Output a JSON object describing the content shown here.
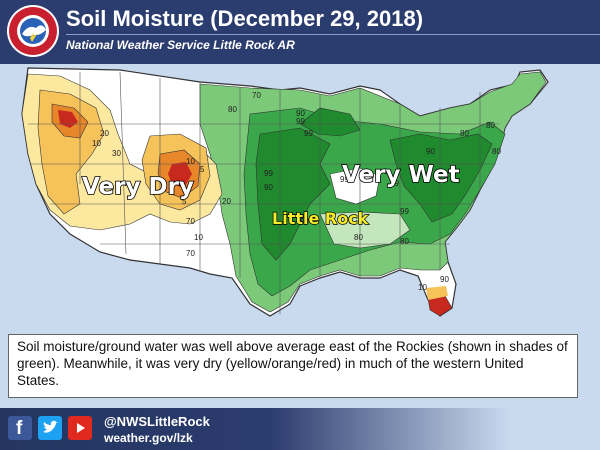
{
  "header": {
    "title": "Soil Moisture (December 29, 2018)",
    "subtitle": "National Weather Service Little Rock AR",
    "logo_text": "NATIONAL WEATHER SERVICE"
  },
  "map": {
    "labels": {
      "very_dry": "Very Dry",
      "very_wet": "Very Wet",
      "little_rock": "Little Rock"
    },
    "contours": [
      "10",
      "30",
      "10",
      "5",
      "5",
      "20",
      "70",
      "10",
      "70",
      "80",
      "70",
      "90",
      "99",
      "99",
      "99",
      "90",
      "99",
      "99",
      "80",
      "90",
      "99",
      "70",
      "80",
      "80",
      "90",
      "10",
      "90",
      "80",
      "80",
      "20"
    ],
    "colors": {
      "very_wet": "#1f8a2e",
      "wet": "#3aa84a",
      "moist": "#7cc97a",
      "light": "#c4e6bd",
      "normal": "#ffffff",
      "dry": "#fde8a0",
      "drier": "#f6c35a",
      "very_dry": "#e8862a",
      "extreme": "#c8291e",
      "water": "#c9d9ee"
    }
  },
  "caption": {
    "text": "Soil moisture/ground water was well above average east of the Rockies (shown in shades of green). Meanwhile, it was very dry (yellow/orange/red) in much of the western United States."
  },
  "footer": {
    "handle": "@NWSLittleRock",
    "website": "weather.gov/lzk",
    "icons": [
      "facebook-icon",
      "twitter-icon",
      "youtube-icon"
    ]
  }
}
